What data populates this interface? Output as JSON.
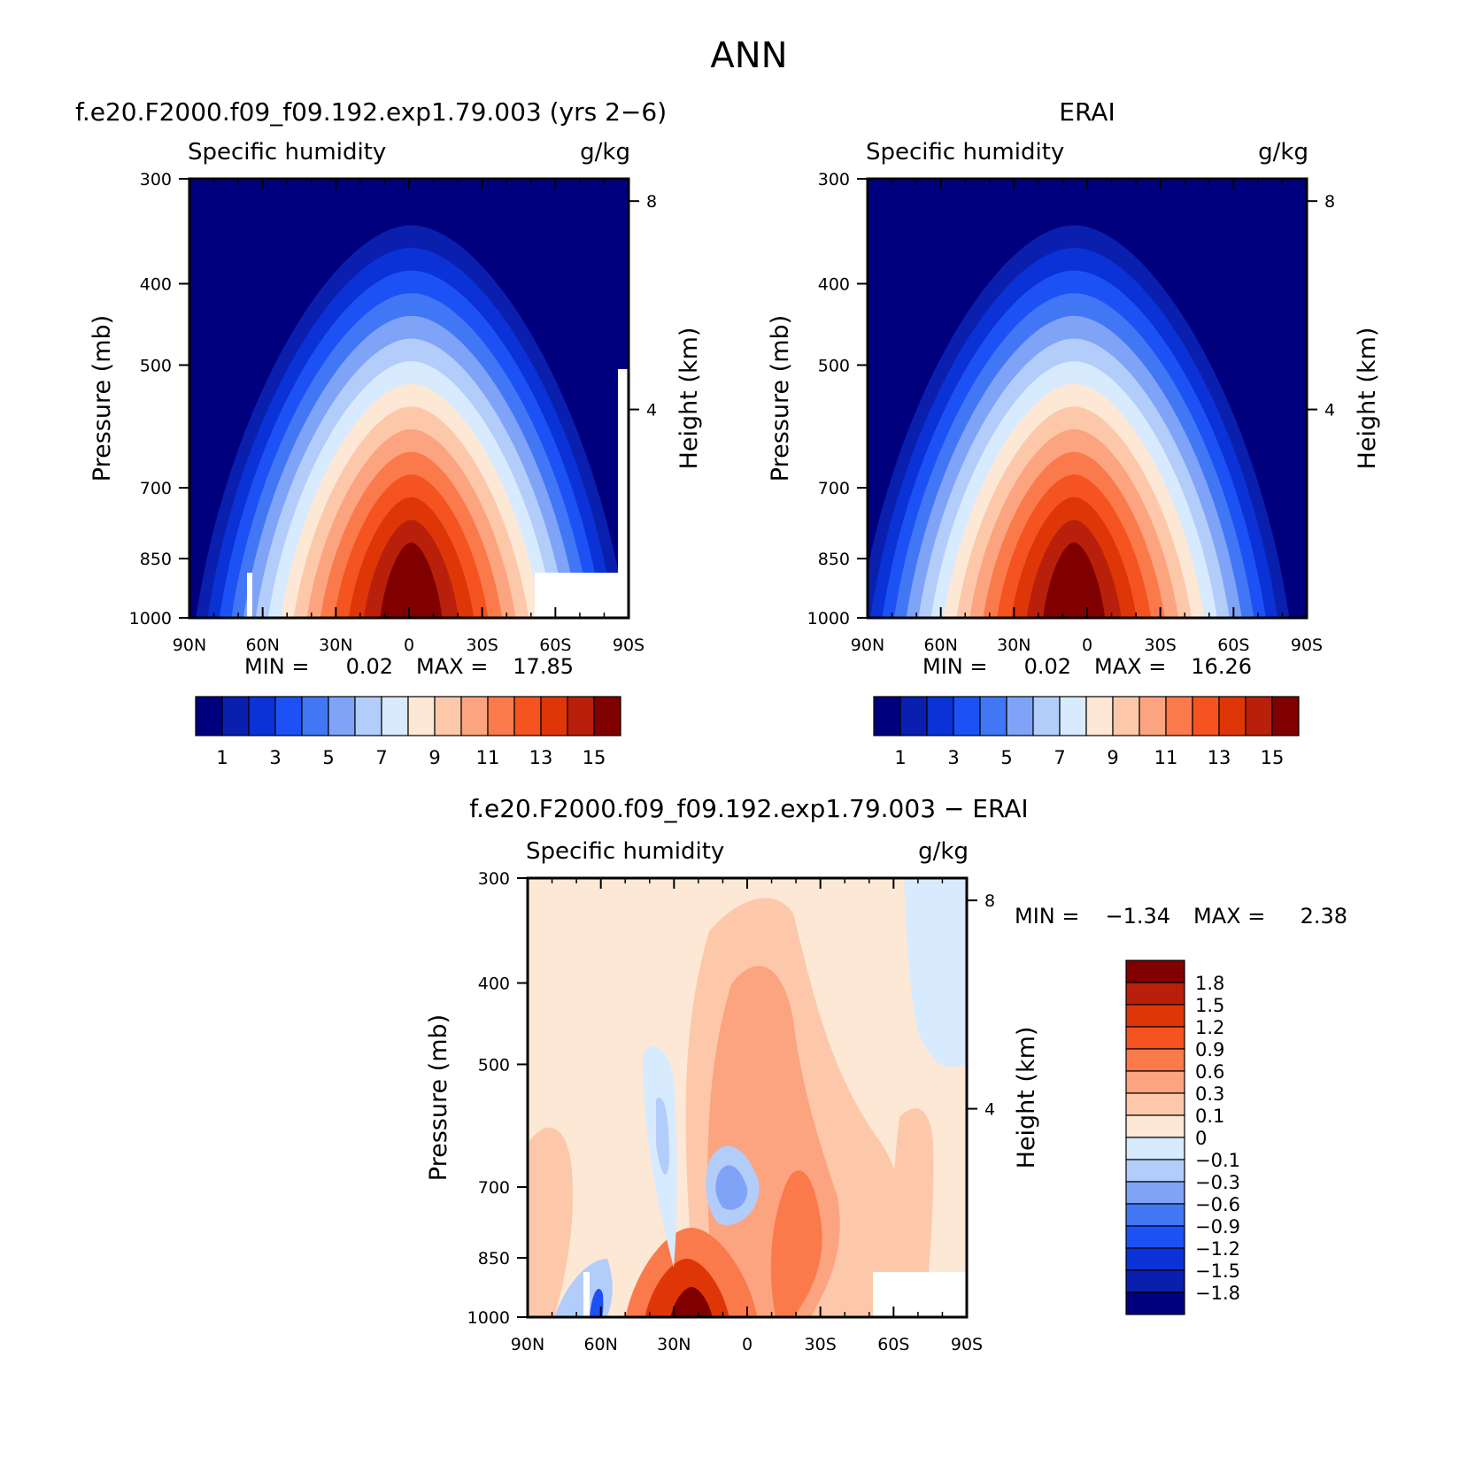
{
  "figure": {
    "title": "ANN",
    "xtick_labels": [
      "90N",
      "60N",
      "30N",
      "0",
      "30S",
      "60S",
      "90S"
    ],
    "ptick_labels": [
      "300",
      "400",
      "500",
      "700",
      "850",
      "1000"
    ],
    "htick_labels": [
      "8",
      "4"
    ],
    "ylabel_left": "Pressure (mb)",
    "ylabel_right": "Height (km)",
    "var_name": "Specific humidity",
    "units": "g/kg",
    "min_label": "MIN =",
    "max_label": "MAX ="
  },
  "colorbars": {
    "abs_colors": [
      "#00007f",
      "#0a1fae",
      "#0a32d6",
      "#1c52f5",
      "#4177f5",
      "#7fa3f6",
      "#b3cdfb",
      "#d8eafd",
      "#fde8d6",
      "#fdc8aa",
      "#fca47f",
      "#fa7a4c",
      "#f5531f",
      "#df3608",
      "#b8200b",
      "#800000"
    ],
    "abs_labels": [
      "1",
      "3",
      "5",
      "7",
      "9",
      "11",
      "13",
      "15"
    ],
    "diff_colors": [
      "#00007f",
      "#0a1fae",
      "#0a32d6",
      "#1c52f5",
      "#4177f5",
      "#7fa3f6",
      "#b3cdfb",
      "#d8eafd",
      "#fde8d6",
      "#fdc8aa",
      "#fca47f",
      "#fa7a4c",
      "#f5531f",
      "#df3608",
      "#b8200b",
      "#800000"
    ],
    "diff_labels": [
      "1.8",
      "1.5",
      "1.2",
      "0.9",
      "0.6",
      "0.3",
      "0.1",
      "0",
      "−0.1",
      "−0.3",
      "−0.6",
      "−0.9",
      "−1.2",
      "−1.5",
      "−1.8"
    ]
  },
  "chart_data": [
    {
      "type": "heatmap",
      "title": "f.e20.F2000.f09_f09.192.exp1.79.003 (yrs 2−6)",
      "subtitle_left": "Specific humidity",
      "subtitle_right": "g/kg",
      "xlabel": "",
      "ylabel": "Pressure (mb)",
      "ylabel_right": "Height (km)",
      "x_range": [
        90,
        -90
      ],
      "y_range": [
        300,
        1000
      ],
      "min": "0.02",
      "max": "17.85",
      "peak_value": 17.85,
      "peak_pressure": 930
    },
    {
      "type": "heatmap",
      "title": "ERAI",
      "subtitle_left": "Specific humidity",
      "subtitle_right": "g/kg",
      "xlabel": "",
      "ylabel": "Pressure (mb)",
      "ylabel_right": "Height (km)",
      "x_range": [
        90,
        -90
      ],
      "y_range": [
        300,
        1000
      ],
      "min": "0.02",
      "max": "16.26",
      "peak_value": 16.26,
      "peak_pressure": 950
    },
    {
      "type": "heatmap",
      "title": "f.e20.F2000.f09_f09.192.exp1.79.003 − ERAI",
      "subtitle_left": "Specific humidity",
      "subtitle_right": "g/kg",
      "xlabel": "",
      "ylabel": "Pressure (mb)",
      "ylabel_right": "Height (km)",
      "x_range": [
        90,
        -90
      ],
      "y_range": [
        300,
        1000
      ],
      "min": "−1.34",
      "max": "2.38"
    }
  ]
}
